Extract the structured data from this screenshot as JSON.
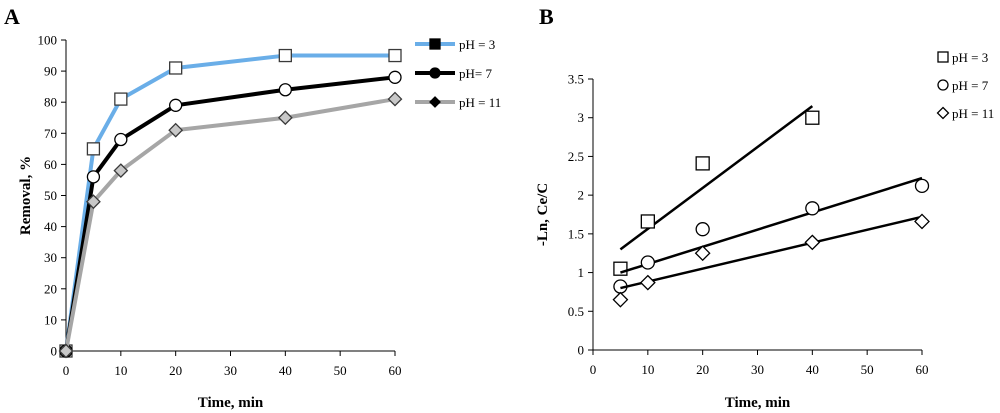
{
  "chart_data": [
    {
      "panel": "A",
      "type": "line",
      "xlabel": "Time, min",
      "ylabel": "Removal, %",
      "xlim": [
        0,
        60
      ],
      "ylim": [
        0,
        100
      ],
      "xticks": [
        0,
        10,
        20,
        30,
        40,
        50,
        60
      ],
      "yticks": [
        0,
        10,
        20,
        30,
        40,
        50,
        60,
        70,
        80,
        90,
        100
      ],
      "grid": false,
      "legend_position": "right",
      "series": [
        {
          "name": "pH = 3",
          "color": "#6aaee8",
          "marker": "square",
          "x": [
            0,
            5,
            10,
            20,
            40,
            60
          ],
          "y": [
            0,
            65,
            81,
            91,
            95,
            95
          ]
        },
        {
          "name": "pH= 7",
          "color": "#000000",
          "marker": "circle",
          "x": [
            0,
            5,
            10,
            20,
            40,
            60
          ],
          "y": [
            0,
            56,
            68,
            79,
            84,
            88
          ]
        },
        {
          "name": "pH = 11",
          "color": "#a6a6a6",
          "marker": "diamond",
          "x": [
            0,
            5,
            10,
            20,
            40,
            60
          ],
          "y": [
            0,
            48,
            58,
            71,
            75,
            81
          ]
        }
      ]
    },
    {
      "panel": "B",
      "type": "scatter",
      "xlabel": "Time, min",
      "ylabel": "-Ln, Ce/C",
      "xlim": [
        0,
        60
      ],
      "ylim": [
        0,
        3.5
      ],
      "xticks": [
        0,
        10,
        20,
        30,
        40,
        50,
        60
      ],
      "yticks": [
        0,
        0.5,
        1,
        1.5,
        2,
        2.5,
        3,
        3.5
      ],
      "grid": false,
      "legend_position": "right",
      "series": [
        {
          "name": "pH = 3",
          "marker": "square",
          "x": [
            5,
            10,
            20,
            40
          ],
          "y": [
            1.05,
            1.66,
            2.41,
            3.0
          ],
          "fit": {
            "x": [
              5,
              40
            ],
            "y": [
              1.3,
              3.15
            ]
          }
        },
        {
          "name": "pH = 7",
          "marker": "circle",
          "x": [
            5,
            10,
            20,
            40,
            60
          ],
          "y": [
            0.82,
            1.13,
            1.56,
            1.83,
            2.12
          ],
          "fit": {
            "x": [
              5,
              60
            ],
            "y": [
              1.0,
              2.22
            ]
          }
        },
        {
          "name": "pH = 11",
          "marker": "diamond",
          "x": [
            5,
            10,
            20,
            40,
            60
          ],
          "y": [
            0.65,
            0.87,
            1.25,
            1.39,
            1.66
          ],
          "fit": {
            "x": [
              5,
              60
            ],
            "y": [
              0.8,
              1.72
            ]
          }
        }
      ]
    }
  ]
}
